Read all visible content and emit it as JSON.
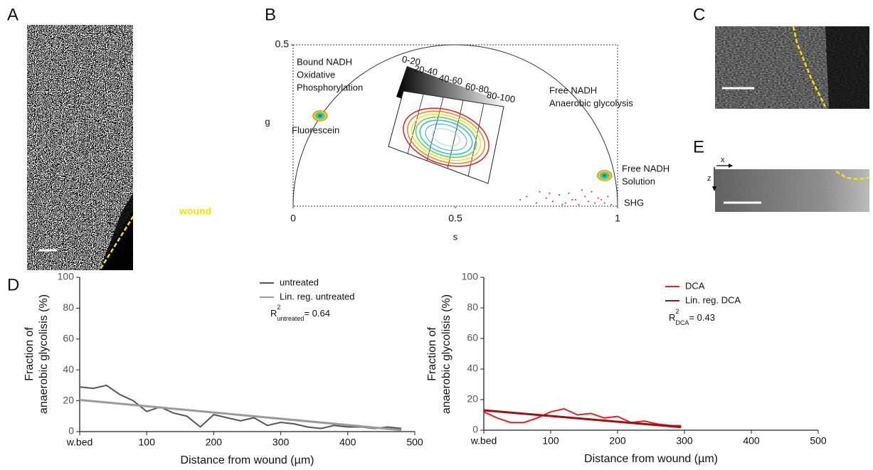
{
  "panel_labels": [
    "A",
    "B",
    "C",
    "D",
    "E"
  ],
  "image_a": {
    "annotation": "wound"
  },
  "image_e": {
    "x_label": "x",
    "z_label": "z"
  },
  "chart_data": [
    {
      "type": "phasor",
      "xlabel": "s",
      "ylabel": "g",
      "xlim": [
        0,
        1
      ],
      "ylim": [
        0,
        0.5
      ],
      "xticks": [
        0,
        0.5,
        1
      ],
      "yticks": [
        0.5
      ],
      "annotations": [
        [
          "Bound NADH",
          "Oxidative",
          "Phosphorylation"
        ],
        [
          "Free NADH",
          "Anaerobic glycolysis"
        ],
        [
          "Fluorescein"
        ],
        [
          "Free NADH",
          "Solution"
        ],
        [
          "SHG"
        ]
      ],
      "colorbar_labels": [
        "0-20",
        "20-40",
        "40-60",
        "60-80",
        "80-100"
      ],
      "clusters": {
        "x": [
          0.083,
          0.96
        ],
        "values": [
          0.28,
          0.095
        ]
      },
      "series": [
        {
          "color": "#d62020",
          "x": [
            0.7,
            0.72,
            0.75,
            0.78,
            0.8,
            0.82,
            0.84,
            0.85,
            0.87,
            0.88,
            0.9,
            0.91,
            0.92,
            0.93,
            0.94,
            0.95,
            0.96,
            0.97,
            0.98,
            0.86,
            0.89,
            0.83,
            0.79,
            0.76
          ],
          "values": [
            0.02,
            0.03,
            0.01,
            0.025,
            0.015,
            0.035,
            0.01,
            0.04,
            0.02,
            0.005,
            0.03,
            0.015,
            0.045,
            0.01,
            0.025,
            0.02,
            0.01,
            0.03,
            0.005,
            0.02,
            0.05,
            0.005,
            0.04,
            0.045
          ]
        }
      ]
    },
    {
      "type": "line",
      "xlabel": "Distance from wound (µm)",
      "ylabel": [
        "Fraction of",
        "anaerobic glycolisis (%)"
      ],
      "xlim": [
        0,
        500
      ],
      "ylim": [
        0,
        100
      ],
      "xticks": [
        {
          "value": 0,
          "label": "w.bed"
        },
        100,
        200,
        300,
        400,
        500
      ],
      "yticks": [
        0,
        20,
        40,
        60,
        80,
        100
      ],
      "series": [
        {
          "name": "untreated",
          "color": "#555555",
          "x": [
            0,
            20,
            40,
            60,
            80,
            100,
            120,
            140,
            160,
            180,
            200,
            220,
            240,
            260,
            280,
            300,
            320,
            340,
            360,
            380,
            400,
            420,
            440,
            460,
            480
          ],
          "values": [
            29,
            28,
            30,
            24,
            20,
            13,
            16,
            12,
            10,
            3,
            11,
            9,
            7,
            9,
            4,
            6,
            5,
            3,
            2,
            4,
            3,
            3,
            2,
            3,
            2
          ]
        },
        {
          "name": "Lin. reg. untreated",
          "color": "#9a9a9a",
          "x": [
            0,
            480
          ],
          "values": [
            20.5,
            1
          ]
        }
      ],
      "r2": {
        "base": "R",
        "sup": "2",
        "sub": "untreated",
        "rest": "= 0.64"
      }
    },
    {
      "type": "line",
      "xlabel": "Distance from wound (µm)",
      "ylabel": [
        "Fraction of",
        "anaerobic glycolisis (%)"
      ],
      "xlim": [
        0,
        500
      ],
      "ylim": [
        0,
        100
      ],
      "xticks": [
        {
          "value": 0,
          "label": "w.bed"
        },
        100,
        200,
        300,
        400,
        500
      ],
      "yticks": [
        0,
        20,
        40,
        60,
        80,
        100
      ],
      "series": [
        {
          "name": "DCA",
          "color": "#e8201f",
          "x": [
            0,
            20,
            40,
            60,
            80,
            100,
            120,
            140,
            160,
            180,
            200,
            220,
            240,
            260,
            280,
            295
          ],
          "values": [
            12,
            8,
            5,
            5,
            8,
            12,
            14,
            10,
            11,
            8,
            9,
            5,
            6,
            4,
            3,
            3
          ]
        },
        {
          "name": "Lin. reg. DCA",
          "color": "#a01010",
          "x": [
            0,
            295
          ],
          "values": [
            13,
            2
          ]
        }
      ],
      "r2": {
        "base": "R",
        "sup": "2",
        "sub": "DCA",
        "rest": "= 0.43"
      }
    }
  ]
}
